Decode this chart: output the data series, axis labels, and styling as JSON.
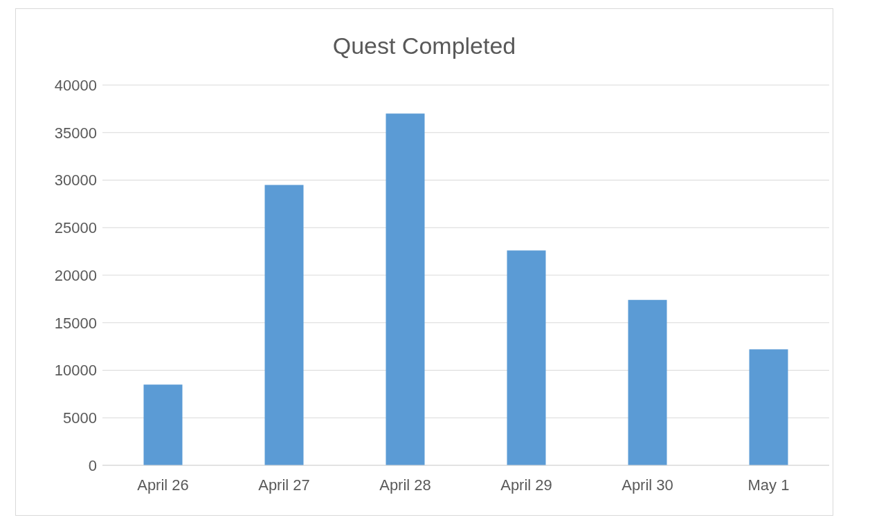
{
  "chart_data": {
    "type": "bar",
    "title": "Quest Completed",
    "categories": [
      "April 26",
      "April 27",
      "April 28",
      "April 29",
      "April 30",
      "May 1"
    ],
    "values": [
      8500,
      29500,
      37000,
      22600,
      17400,
      12200
    ],
    "color": "#5b9bd5",
    "ylim": [
      0,
      40000
    ],
    "yticks": [
      0,
      5000,
      10000,
      15000,
      20000,
      25000,
      30000,
      35000,
      40000
    ],
    "grid": "y",
    "legend": false
  }
}
